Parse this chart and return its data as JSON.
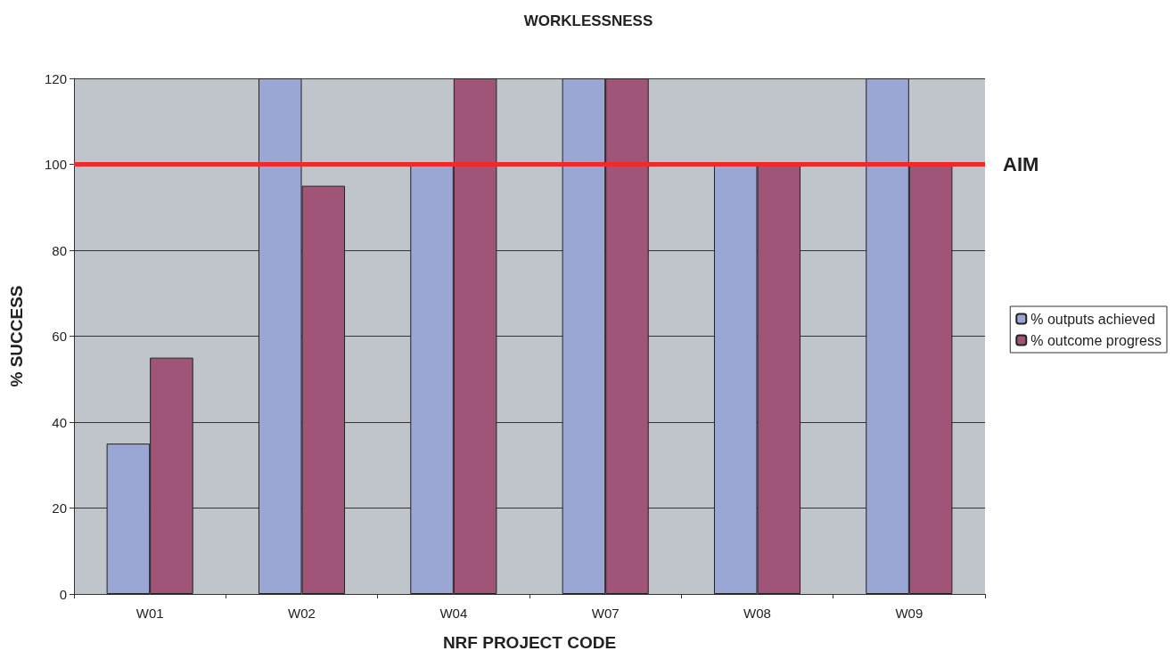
{
  "chart_data": {
    "type": "bar",
    "title": "WORKLESSNESS",
    "xlabel": "NRF PROJECT CODE",
    "ylabel": "% SUCCESS",
    "categories": [
      "W01",
      "W02",
      "W04",
      "W07",
      "W08",
      "W09"
    ],
    "series": [
      {
        "name": "% outputs achieved",
        "color": "#9aa6d4",
        "values": [
          35,
          120,
          100,
          120,
          100,
          120
        ]
      },
      {
        "name": "% outcome progress",
        "color": "#a05478",
        "values": [
          55,
          95,
          120,
          120,
          100,
          100
        ]
      }
    ],
    "ylim": [
      0,
      120
    ],
    "yticks": [
      0,
      20,
      40,
      60,
      80,
      100,
      120
    ],
    "grid": "y",
    "legend": "right",
    "ref_lines": [
      {
        "axis": "y",
        "value": 100,
        "label": "AIM",
        "color": "#ee2a2a"
      }
    ]
  }
}
